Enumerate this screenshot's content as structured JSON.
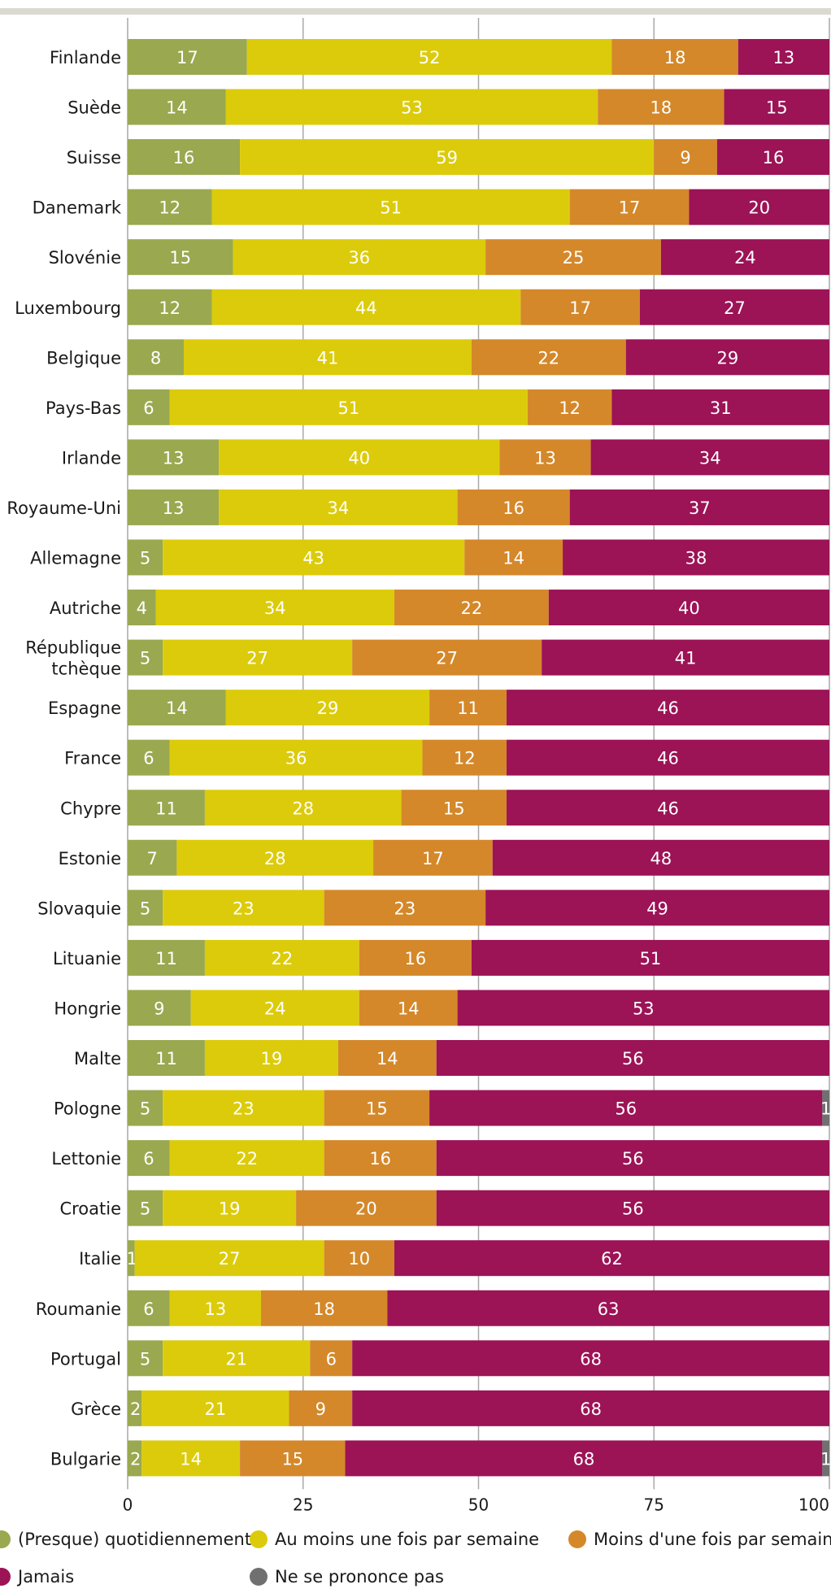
{
  "chart_data": {
    "type": "bar",
    "orientation": "horizontal",
    "stacked": true,
    "title": "",
    "xlabel": "",
    "ylabel": "",
    "xlim": [
      0,
      100
    ],
    "xticks": [
      0,
      25,
      50,
      75,
      100
    ],
    "grid": "vertical",
    "legend_position": "bottom",
    "categories": [
      "Finlande",
      "Suède",
      "Suisse",
      "Danemark",
      "Slovénie",
      "Luxembourg",
      "Belgique",
      "Pays-Bas",
      "Irlande",
      "Royaume-Uni",
      "Allemagne",
      "Autriche",
      "République tchèque",
      "Espagne",
      "France",
      "Chypre",
      "Estonie",
      "Slovaquie",
      "Lituanie",
      "Hongrie",
      "Malte",
      "Pologne",
      "Lettonie",
      "Croatie",
      "Italie",
      "Roumanie",
      "Portugal",
      "Grèce",
      "Bulgarie"
    ],
    "series": [
      {
        "name": "(Presque) quotidiennement",
        "color": "#9aa84f",
        "values": [
          17,
          14,
          16,
          12,
          15,
          12,
          8,
          6,
          13,
          13,
          5,
          4,
          5,
          14,
          6,
          11,
          7,
          5,
          11,
          9,
          11,
          5,
          6,
          5,
          1,
          6,
          5,
          2,
          2
        ]
      },
      {
        "name": "Au moins une fois par semaine",
        "color": "#dccb0a",
        "values": [
          52,
          53,
          59,
          51,
          36,
          44,
          41,
          51,
          40,
          34,
          43,
          34,
          27,
          29,
          36,
          28,
          28,
          23,
          22,
          24,
          19,
          23,
          22,
          19,
          27,
          13,
          21,
          21,
          14
        ]
      },
      {
        "name": "Moins d'une fois par semaine",
        "color": "#d4882a",
        "values": [
          18,
          18,
          9,
          17,
          25,
          17,
          22,
          12,
          13,
          16,
          14,
          22,
          27,
          11,
          12,
          15,
          17,
          23,
          16,
          14,
          14,
          15,
          16,
          20,
          10,
          18,
          6,
          9,
          15
        ]
      },
      {
        "name": "Jamais",
        "color": "#9c1356",
        "values": [
          13,
          15,
          16,
          20,
          24,
          27,
          29,
          31,
          34,
          37,
          38,
          40,
          41,
          46,
          46,
          46,
          48,
          49,
          51,
          53,
          56,
          56,
          56,
          56,
          62,
          63,
          68,
          68,
          68
        ]
      },
      {
        "name": "Ne se prononce pas",
        "color": "#707070",
        "values": [
          0,
          0,
          0,
          0,
          0,
          0,
          0,
          0,
          0,
          0,
          0,
          0,
          0,
          0,
          0,
          0,
          0,
          0,
          0,
          0,
          0,
          1,
          0,
          0,
          0,
          0,
          0,
          0,
          1
        ]
      }
    ]
  }
}
